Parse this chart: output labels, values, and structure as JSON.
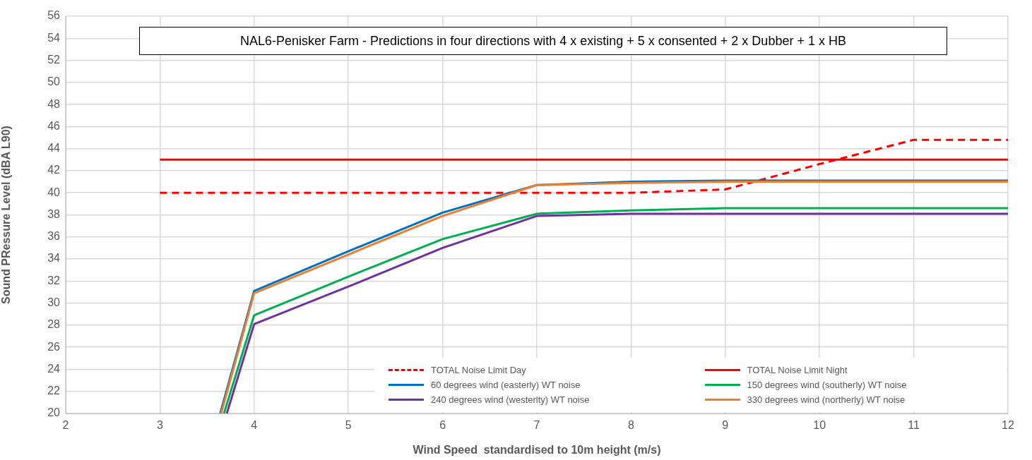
{
  "chart_data": {
    "type": "line",
    "title": "NAL6-Penisker Farm -  Predictions in four directions with 4 x existing + 5 x consented + 2 x Dubber + 1 x HB",
    "xlabel": "Wind Speed  standardised to 10m height (m/s)",
    "ylabel": "Sound PRessure Level (dBA L90)",
    "xlim": [
      2,
      12
    ],
    "xticks": [
      2,
      3,
      4,
      5,
      6,
      7,
      8,
      9,
      10,
      11,
      12
    ],
    "ylim": [
      20,
      56
    ],
    "yticks": [
      20,
      22,
      24,
      26,
      28,
      30,
      32,
      34,
      36,
      38,
      40,
      42,
      44,
      46,
      48,
      50,
      52,
      54,
      56
    ],
    "grid": true,
    "legend": "bottom right",
    "marker": "none",
    "series": [
      {
        "name": "TOTAL Noise Limit Day",
        "color": "#ff0000",
        "line_style": "dashed",
        "x": [
          3,
          4,
          5,
          6,
          7,
          8,
          9,
          10,
          11,
          12
        ],
        "values": [
          40,
          40,
          40,
          40,
          40,
          40,
          40.3,
          42.6,
          44.8,
          44.8
        ]
      },
      {
        "name": "TOTAL Noise Limit Night",
        "color": "#ff0000",
        "line_style": "solid",
        "x": [
          3,
          4,
          5,
          6,
          7,
          8,
          9,
          10,
          11,
          12
        ],
        "values": [
          43,
          43,
          43,
          43,
          43,
          43,
          43,
          43,
          43,
          43
        ]
      },
      {
        "name": "60 degrees wind (easterly) WT noise",
        "color": "#0070c0",
        "line_style": "solid",
        "x": [
          3.64,
          4,
          5,
          6,
          7,
          8,
          9,
          10,
          11,
          12
        ],
        "values": [
          20,
          31.1,
          34.7,
          38.2,
          40.7,
          41.0,
          41.1,
          41.1,
          41.1,
          41.1
        ]
      },
      {
        "name": "150 degrees wind (southerly) WT noise",
        "color": "#00b050",
        "line_style": "solid",
        "x": [
          3.68,
          4,
          5,
          6,
          7,
          8,
          9,
          10,
          11,
          12
        ],
        "values": [
          20,
          28.9,
          32.4,
          35.8,
          38.1,
          38.4,
          38.6,
          38.6,
          38.6,
          38.6
        ]
      },
      {
        "name": "240 degrees wind (westerlty) WT noise",
        "color": "#7030a0",
        "line_style": "solid",
        "x": [
          3.71,
          4,
          5,
          6,
          7,
          8,
          9,
          10,
          11,
          12
        ],
        "values": [
          20,
          28.1,
          31.5,
          35.0,
          37.9,
          38.1,
          38.1,
          38.1,
          38.1,
          38.1
        ]
      },
      {
        "name": "330 degrees wind (northerly) WT noise",
        "color": "#ed7d31",
        "line_style": "solid",
        "x": [
          3.65,
          4,
          5,
          6,
          7,
          8,
          9,
          10,
          11,
          12
        ],
        "values": [
          20,
          30.9,
          34.4,
          37.9,
          40.7,
          40.9,
          41.0,
          41.0,
          41.0,
          41.0
        ]
      }
    ]
  }
}
